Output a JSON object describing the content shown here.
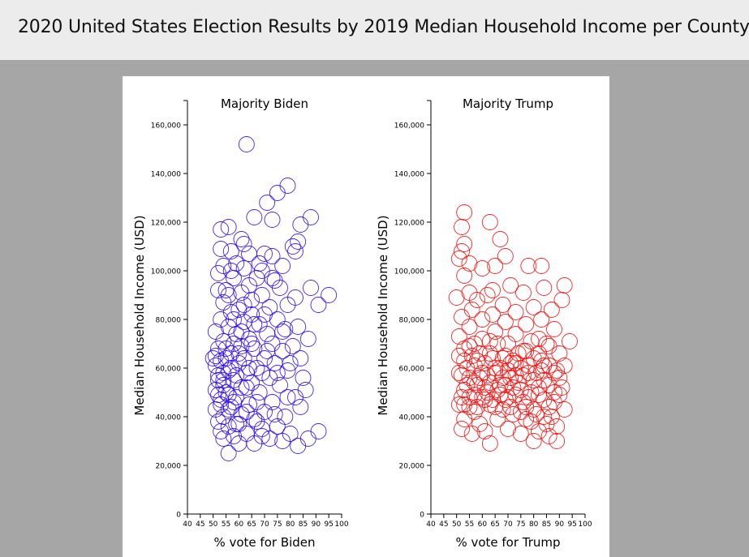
{
  "header": {
    "title": "2020 United States Election Results by 2019 Median Household Income per County"
  },
  "colors": {
    "biden": "#2200ff",
    "trump": "#ff0000",
    "background": "#a6a6a6",
    "header": "#ececec"
  },
  "chart_data": [
    {
      "type": "scatter",
      "title": "Majority Biden",
      "xlabel": "% vote for Biden",
      "ylabel": "Median Household Income (USD)",
      "xlim": [
        40,
        100
      ],
      "ylim": [
        0,
        170000
      ],
      "xticks": [
        "40",
        "45",
        "50",
        "55",
        "60",
        "65",
        "70",
        "75",
        "80",
        "85",
        "90",
        "95",
        "100"
      ],
      "yticks": [
        "0",
        "20,000",
        "40,000",
        "60,000",
        "80,000",
        "100,000",
        "120,000",
        "140,000",
        "160,000"
      ],
      "color": "#2200ff",
      "points": [
        [
          63,
          152000
        ],
        [
          79,
          135000
        ],
        [
          75,
          132000
        ],
        [
          71,
          128000
        ],
        [
          88,
          122000
        ],
        [
          66,
          122000
        ],
        [
          73,
          121000
        ],
        [
          56,
          118000
        ],
        [
          84,
          119000
        ],
        [
          53,
          117000
        ],
        [
          61,
          113000
        ],
        [
          83,
          112000
        ],
        [
          62,
          111000
        ],
        [
          81,
          110000
        ],
        [
          53,
          109000
        ],
        [
          57,
          108000
        ],
        [
          64,
          107000
        ],
        [
          70,
          107000
        ],
        [
          73,
          106000
        ],
        [
          82,
          108000
        ],
        [
          59,
          103000
        ],
        [
          54,
          102000
        ],
        [
          77,
          102000
        ],
        [
          62,
          101000
        ],
        [
          69,
          100000
        ],
        [
          52,
          99000
        ],
        [
          58,
          97000
        ],
        [
          67,
          97000
        ],
        [
          74,
          96000
        ],
        [
          95,
          90000
        ],
        [
          88,
          93000
        ],
        [
          76,
          93000
        ],
        [
          52,
          92000
        ],
        [
          61,
          91000
        ],
        [
          56,
          90000
        ],
        [
          69,
          90000
        ],
        [
          82,
          89000
        ],
        [
          65,
          88000
        ],
        [
          54,
          87000
        ],
        [
          79,
          86000
        ],
        [
          91,
          86000
        ],
        [
          72,
          85000
        ],
        [
          60,
          84000
        ],
        [
          57,
          83000
        ],
        [
          65,
          82000
        ],
        [
          53,
          80000
        ],
        [
          75,
          80000
        ],
        [
          62,
          79000
        ],
        [
          83,
          77000
        ],
        [
          68,
          78000
        ],
        [
          56,
          77000
        ],
        [
          78,
          76000
        ],
        [
          51,
          75000
        ],
        [
          59,
          74000
        ],
        [
          71,
          74000
        ],
        [
          87,
          72000
        ],
        [
          64,
          72000
        ],
        [
          54,
          71000
        ],
        [
          73,
          70000
        ],
        [
          61,
          69000
        ],
        [
          52,
          68000
        ],
        [
          66,
          68000
        ],
        [
          77,
          67000
        ],
        [
          57,
          66000
        ],
        [
          84,
          64000
        ],
        [
          70,
          64000
        ],
        [
          53,
          63000
        ],
        [
          60,
          62000
        ],
        [
          74,
          62000
        ],
        [
          51,
          61000
        ],
        [
          67,
          60000
        ],
        [
          56,
          59000
        ],
        [
          79,
          59000
        ],
        [
          63,
          58000
        ],
        [
          52,
          57000
        ],
        [
          72,
          56000
        ],
        [
          58,
          55000
        ],
        [
          65,
          54000
        ],
        [
          54,
          53000
        ],
        [
          76,
          53000
        ],
        [
          61,
          52000
        ],
        [
          51,
          51000
        ],
        [
          86,
          51000
        ],
        [
          68,
          50000
        ],
        [
          56,
          49000
        ],
        [
          59,
          48000
        ],
        [
          82,
          48000
        ],
        [
          53,
          47000
        ],
        [
          73,
          46000
        ],
        [
          64,
          45000
        ],
        [
          57,
          44000
        ],
        [
          84,
          44000
        ],
        [
          51,
          43000
        ],
        [
          70,
          42000
        ],
        [
          61,
          41000
        ],
        [
          54,
          40000
        ],
        [
          78,
          40000
        ],
        [
          66,
          39000
        ],
        [
          52,
          38000
        ],
        [
          60,
          37000
        ],
        [
          75,
          36000
        ],
        [
          56,
          36000
        ],
        [
          69,
          35000
        ],
        [
          91,
          34000
        ],
        [
          53,
          34000
        ],
        [
          63,
          33000
        ],
        [
          80,
          33000
        ],
        [
          58,
          32000
        ],
        [
          72,
          31000
        ],
        [
          87,
          31000
        ],
        [
          54,
          31000
        ],
        [
          66,
          29000
        ],
        [
          77,
          30000
        ],
        [
          83,
          28000
        ],
        [
          60,
          29000
        ],
        [
          56,
          25000
        ],
        [
          51,
          65000
        ],
        [
          55,
          64000
        ],
        [
          58,
          70000
        ],
        [
          52,
          55000
        ],
        [
          55,
          50000
        ],
        [
          53,
          45000
        ],
        [
          57,
          60000
        ],
        [
          59,
          57000
        ],
        [
          62,
          64000
        ],
        [
          64,
          60000
        ],
        [
          54,
          58000
        ],
        [
          61,
          75000
        ],
        [
          55,
          68000
        ],
        [
          50,
          64000
        ],
        [
          58,
          46000
        ],
        [
          65,
          70000
        ],
        [
          60,
          66000
        ],
        [
          69,
          58000
        ],
        [
          71,
          67000
        ],
        [
          63,
          52000
        ],
        [
          67,
          46000
        ],
        [
          75,
          58000
        ],
        [
          80,
          62000
        ],
        [
          58,
          80000
        ],
        [
          62,
          86000
        ],
        [
          66,
          78000
        ],
        [
          70,
          82000
        ],
        [
          55,
          92000
        ],
        [
          64,
          94000
        ],
        [
          57,
          100000
        ],
        [
          68,
          103000
        ],
        [
          73,
          97000
        ],
        [
          77,
          75000
        ],
        [
          81,
          69000
        ],
        [
          85,
          56000
        ],
        [
          79,
          48000
        ],
        [
          74,
          41000
        ],
        [
          69,
          32000
        ],
        [
          59,
          37000
        ],
        [
          56,
          43000
        ],
        [
          52,
          49000
        ],
        [
          63,
          42000
        ],
        [
          67,
          38000
        ],
        [
          54,
          55000
        ]
      ]
    },
    {
      "type": "scatter",
      "title": "Majority Trump",
      "xlabel": "% vote for Trump",
      "ylabel": "Median Household Income (USD)",
      "xlim": [
        40,
        100
      ],
      "ylim": [
        0,
        170000
      ],
      "xticks": [
        "40",
        "45",
        "50",
        "55",
        "60",
        "65",
        "70",
        "75",
        "80",
        "85",
        "90",
        "95",
        "100"
      ],
      "yticks": [
        "0",
        "20,000",
        "40,000",
        "60,000",
        "80,000",
        "100,000",
        "120,000",
        "140,000",
        "160,000"
      ],
      "color": "#ff0000",
      "points": [
        [
          53,
          124000
        ],
        [
          63,
          120000
        ],
        [
          52,
          118000
        ],
        [
          53,
          111000
        ],
        [
          67,
          113000
        ],
        [
          52,
          108000
        ],
        [
          51,
          105000
        ],
        [
          55,
          103000
        ],
        [
          65,
          102000
        ],
        [
          60,
          101000
        ],
        [
          69,
          106000
        ],
        [
          83,
          102000
        ],
        [
          78,
          102000
        ],
        [
          53,
          98000
        ],
        [
          92,
          94000
        ],
        [
          84,
          93000
        ],
        [
          64,
          92000
        ],
        [
          71,
          94000
        ],
        [
          55,
          91000
        ],
        [
          76,
          91000
        ],
        [
          62,
          90000
        ],
        [
          50,
          89000
        ],
        [
          91,
          88000
        ],
        [
          58,
          88000
        ],
        [
          68,
          86000
        ],
        [
          80,
          85000
        ],
        [
          87,
          84000
        ],
        [
          56,
          84000
        ],
        [
          73,
          83000
        ],
        [
          64,
          82000
        ],
        [
          52,
          81000
        ],
        [
          83,
          80000
        ],
        [
          60,
          80000
        ],
        [
          69,
          79000
        ],
        [
          77,
          78000
        ],
        [
          55,
          77000
        ],
        [
          88,
          76000
        ],
        [
          65,
          75000
        ],
        [
          73,
          74000
        ],
        [
          51,
          73000
        ],
        [
          60,
          72000
        ],
        [
          82,
          72000
        ],
        [
          94,
          71000
        ],
        [
          57,
          70000
        ],
        [
          70,
          70000
        ],
        [
          86,
          69000
        ],
        [
          53,
          68000
        ],
        [
          76,
          67000
        ],
        [
          63,
          66000
        ],
        [
          90,
          66000
        ],
        [
          51,
          65000
        ],
        [
          68,
          64000
        ],
        [
          80,
          64000
        ],
        [
          58,
          63000
        ],
        [
          73,
          62000
        ],
        [
          86,
          61000
        ],
        [
          54,
          60000
        ],
        [
          65,
          60000
        ],
        [
          89,
          59000
        ],
        [
          60,
          58000
        ],
        [
          78,
          58000
        ],
        [
          52,
          57000
        ],
        [
          71,
          56000
        ],
        [
          84,
          55000
        ],
        [
          57,
          54000
        ],
        [
          67,
          53000
        ],
        [
          91,
          52000
        ],
        [
          53,
          51000
        ],
        [
          75,
          51000
        ],
        [
          62,
          50000
        ],
        [
          82,
          49000
        ],
        [
          55,
          48000
        ],
        [
          69,
          47000
        ],
        [
          88,
          46000
        ],
        [
          51,
          45000
        ],
        [
          63,
          45000
        ],
        [
          77,
          44000
        ],
        [
          92,
          43000
        ],
        [
          57,
          42000
        ],
        [
          72,
          41000
        ],
        [
          84,
          40000
        ],
        [
          53,
          39000
        ],
        [
          66,
          39000
        ],
        [
          79,
          38000
        ],
        [
          59,
          37000
        ],
        [
          89,
          36000
        ],
        [
          52,
          35000
        ],
        [
          70,
          35000
        ],
        [
          82,
          34000
        ],
        [
          61,
          34000
        ],
        [
          75,
          33000
        ],
        [
          86,
          32000
        ],
        [
          56,
          33000
        ],
        [
          80,
          30000
        ],
        [
          89,
          30000
        ],
        [
          63,
          29000
        ],
        [
          55,
          44000
        ],
        [
          58,
          53000
        ],
        [
          61,
          62000
        ],
        [
          64,
          47000
        ],
        [
          66,
          70000
        ],
        [
          68,
          56000
        ],
        [
          70,
          48000
        ],
        [
          72,
          63000
        ],
        [
          74,
          54000
        ],
        [
          76,
          46000
        ],
        [
          78,
          61000
        ],
        [
          80,
          55000
        ],
        [
          82,
          66000
        ],
        [
          84,
          47000
        ],
        [
          86,
          53000
        ],
        [
          88,
          58000
        ],
        [
          90,
          49000
        ],
        [
          92,
          61000
        ],
        [
          85,
          70000
        ],
        [
          83,
          59000
        ],
        [
          81,
          41000
        ],
        [
          79,
          50000
        ],
        [
          77,
          67000
        ],
        [
          75,
          42000
        ],
        [
          73,
          57000
        ],
        [
          71,
          44000
        ],
        [
          69,
          65000
        ],
        [
          67,
          49000
        ],
        [
          65,
          58000
        ],
        [
          63,
          71000
        ],
        [
          61,
          52000
        ],
        [
          59,
          66000
        ],
        [
          57,
          61000
        ],
        [
          55,
          56000
        ],
        [
          53,
          63000
        ],
        [
          51,
          58000
        ],
        [
          52,
          48000
        ],
        [
          54,
          53000
        ],
        [
          56,
          65000
        ],
        [
          58,
          44000
        ],
        [
          60,
          48000
        ],
        [
          62,
          57000
        ],
        [
          64,
          64000
        ],
        [
          66,
          51000
        ],
        [
          68,
          43000
        ],
        [
          70,
          59000
        ],
        [
          72,
          52000
        ],
        [
          74,
          66000
        ],
        [
          76,
          57000
        ],
        [
          78,
          48000
        ],
        [
          80,
          43000
        ],
        [
          82,
          52000
        ],
        [
          84,
          61000
        ],
        [
          86,
          44000
        ],
        [
          88,
          50000
        ],
        [
          90,
          56000
        ],
        [
          87,
          40000
        ],
        [
          85,
          37000
        ],
        [
          83,
          63000
        ],
        [
          81,
          58000
        ],
        [
          79,
          71000
        ],
        [
          77,
          39000
        ],
        [
          75,
          60000
        ],
        [
          73,
          49000
        ],
        [
          71,
          62000
        ],
        [
          69,
          53000
        ],
        [
          67,
          60000
        ],
        [
          65,
          44000
        ],
        [
          63,
          54000
        ],
        [
          61,
          47000
        ],
        [
          59,
          56000
        ],
        [
          57,
          49000
        ],
        [
          55,
          69000
        ],
        [
          53,
          45000
        ]
      ]
    }
  ]
}
